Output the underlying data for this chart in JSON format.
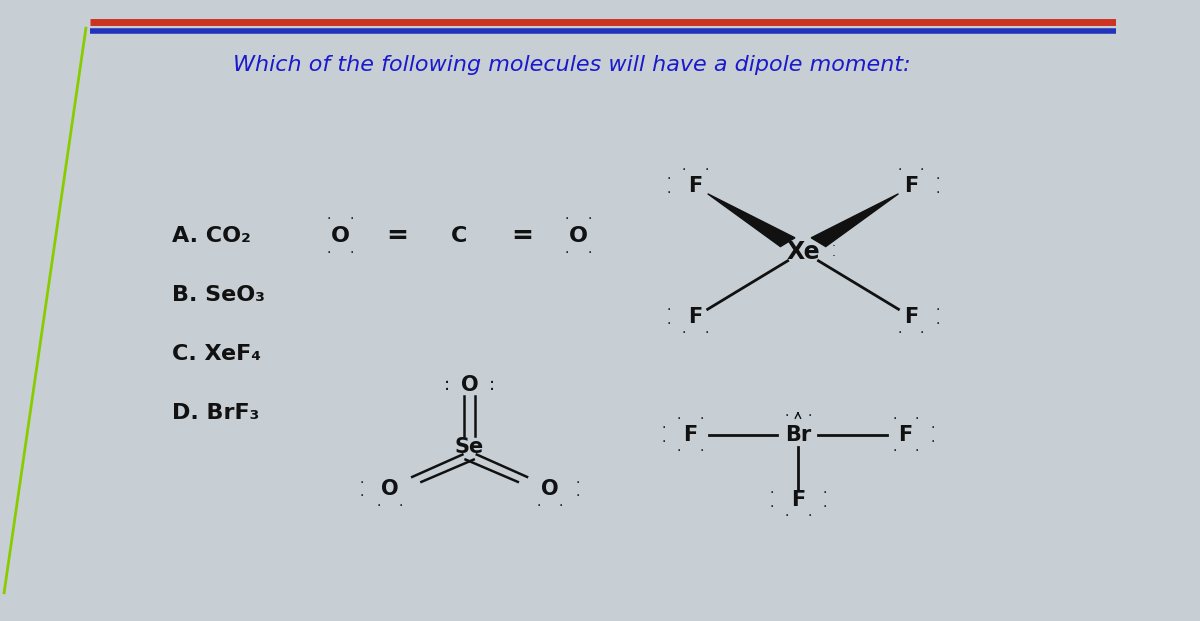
{
  "title": "Which of the following molecules will have a dipole moment:",
  "title_color": "#1a1acc",
  "title_fontsize": 16,
  "bg_color": "#c8cfd4",
  "slide_bg": "#e8ecee",
  "top_bar_red": "#cc3322",
  "top_bar_blue": "#2233bb",
  "left_dark": "#1a1a1a",
  "options": [
    "A. CO₂",
    "B. SeO₃",
    "C. XeF₄",
    "D. BrF₃"
  ],
  "text_color": "#111111"
}
